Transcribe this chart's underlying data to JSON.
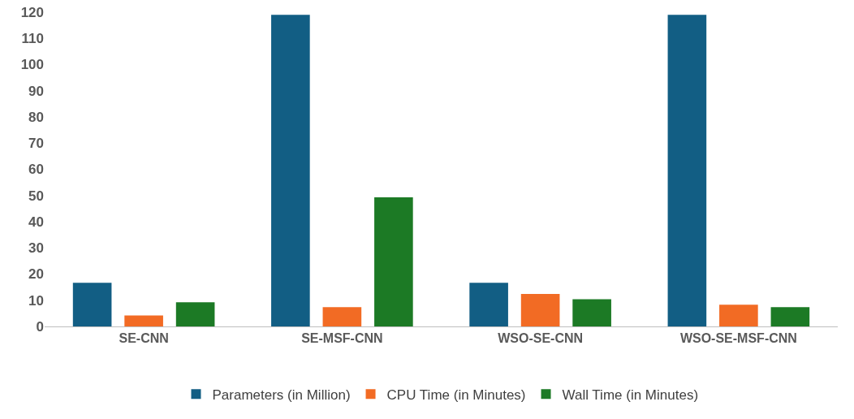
{
  "chart_data": {
    "type": "bar",
    "categories": [
      "SE-CNN",
      "SE-MSF-CNN",
      "WSO-SE-CNN",
      "WSO-SE-MSF-CNN"
    ],
    "series": [
      {
        "name": "Parameters (in Million)",
        "color": "#125e84",
        "values": [
          16.7,
          119,
          16.7,
          119
        ]
      },
      {
        "name": "CPU Time (in Minutes)",
        "color": "#f26b24",
        "values": [
          4.2,
          7.4,
          12.4,
          8.3
        ]
      },
      {
        "name": "Wall Time (in Minutes)",
        "color": "#1c7a25",
        "values": [
          9.2,
          49.3,
          10.4,
          7.4
        ]
      }
    ],
    "ylim": [
      0,
      120
    ],
    "yticks": [
      0,
      10,
      20,
      30,
      40,
      50,
      60,
      70,
      80,
      90,
      100,
      110,
      120
    ],
    "grid": false,
    "legend": "bottom"
  }
}
